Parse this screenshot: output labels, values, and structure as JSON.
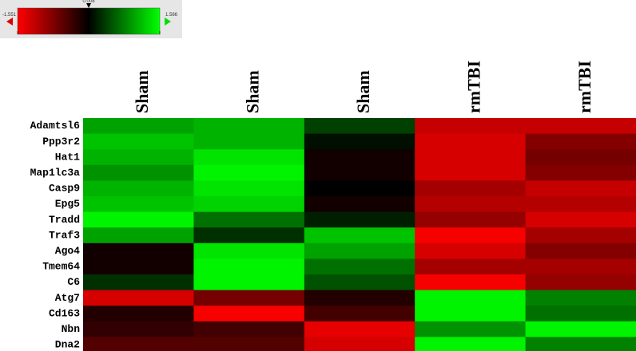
{
  "chart_data": {
    "type": "heatmap",
    "columns": [
      "Sham",
      "Sham",
      "Sham",
      "rmTBI",
      "rmTBI"
    ],
    "rows": [
      "Adamtsl6",
      "Ppp3r2",
      "Hat1",
      "Map1lc3a",
      "Casp9",
      "Epg5",
      "Tradd",
      "Traf3",
      "Ago4",
      "Tmem64",
      "C6",
      "Atg7",
      "Cd163",
      "Nbn",
      "Dna2"
    ],
    "values": [
      [
        1.0,
        1.1,
        0.4,
        -1.2,
        -1.2
      ],
      [
        1.2,
        1.1,
        0.1,
        -1.3,
        -0.8
      ],
      [
        1.1,
        1.4,
        -0.1,
        -1.3,
        -0.7
      ],
      [
        0.9,
        1.5,
        -0.1,
        -1.3,
        -0.8
      ],
      [
        1.1,
        1.4,
        0.0,
        -1.0,
        -1.2
      ],
      [
        1.2,
        1.3,
        -0.1,
        -1.1,
        -1.1
      ],
      [
        1.5,
        0.7,
        0.2,
        -0.9,
        -1.3
      ],
      [
        1.0,
        0.3,
        1.2,
        -1.5,
        -1.0
      ],
      [
        -0.1,
        1.4,
        1.0,
        -1.3,
        -0.8
      ],
      [
        -0.1,
        1.5,
        0.7,
        -1.0,
        -1.0
      ],
      [
        0.3,
        1.5,
        0.5,
        -1.5,
        -0.9
      ],
      [
        -1.3,
        -0.7,
        -0.2,
        1.5,
        0.8
      ],
      [
        -0.2,
        -1.5,
        -0.4,
        1.5,
        0.7
      ],
      [
        -0.3,
        -0.4,
        -1.4,
        0.9,
        1.5
      ],
      [
        -0.5,
        -0.5,
        -1.3,
        1.5,
        0.8
      ]
    ],
    "clim": [
      -1.551,
      1.566
    ],
    "center": 0.008,
    "colorbar_ticks": [
      -1.551,
      0.008,
      1.566
    ],
    "colors": {
      "low": "#ff0000",
      "mid": "#000000",
      "high": "#00ff00"
    }
  }
}
